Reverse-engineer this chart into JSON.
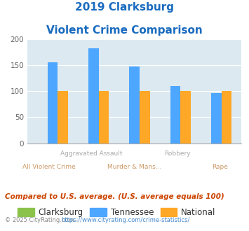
{
  "title_line1": "2019 Clarksburg",
  "title_line2": "Violent Crime Comparison",
  "categories_top": [
    "",
    "Aggravated Assault",
    "",
    "Robbery",
    ""
  ],
  "categories_bottom": [
    "All Violent Crime",
    "",
    "Murder & Mans...",
    "",
    "Rape"
  ],
  "clarksburg_values": [
    0,
    0,
    0,
    0,
    0
  ],
  "tennessee_values": [
    156,
    183,
    147,
    110,
    97
  ],
  "national_values": [
    100,
    100,
    100,
    100,
    100
  ],
  "clarksburg_color": "#8bc34a",
  "tennessee_color": "#4da6ff",
  "national_color": "#ffa726",
  "ylim": [
    0,
    200
  ],
  "yticks": [
    0,
    50,
    100,
    150,
    200
  ],
  "title_color": "#1a6bbf",
  "bg_color": "#dce9f0",
  "subtitle": "Compared to U.S. average. (U.S. average equals 100)",
  "subtitle_color": "#cc4400",
  "footer_text": "© 2025 CityRating.com - ",
  "footer_url": "https://www.cityrating.com/crime-statistics/",
  "footer_color": "#888888",
  "footer_url_color": "#4488cc",
  "legend_labels": [
    "Clarksburg",
    "Tennessee",
    "National"
  ],
  "xlabel_top_color": "#aaaaaa",
  "xlabel_bottom_color": "#cc9966"
}
